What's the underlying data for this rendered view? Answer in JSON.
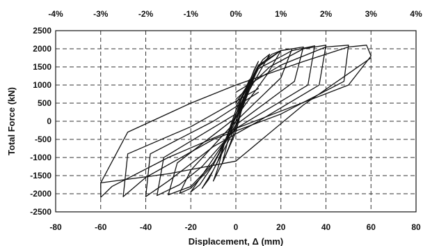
{
  "chart_data": {
    "type": "line",
    "xlabel": "Displacement, Δ (mm)",
    "ylabel": "Total Force (kN)",
    "top_axis_ticks": [
      "-4%",
      "-3%",
      "-2%",
      "-1%",
      "0%",
      "1%",
      "2%",
      "3%",
      "4%"
    ],
    "xlim": [
      -80,
      80
    ],
    "ylim": [
      -2500,
      2500
    ],
    "x_ticks": [
      -80,
      -60,
      -40,
      -20,
      0,
      20,
      40,
      60,
      80
    ],
    "y_ticks": [
      -2500,
      -2000,
      -1500,
      -1000,
      -500,
      0,
      500,
      1000,
      1500,
      2000,
      2500
    ],
    "grid": true,
    "series": [
      {
        "values": [
          [
            0,
            0
          ],
          [
            3,
            450
          ],
          [
            5,
            900
          ],
          [
            6,
            1150
          ],
          [
            3,
            700
          ],
          [
            0,
            180
          ],
          [
            -3,
            -400
          ],
          [
            -5,
            -900
          ],
          [
            -6,
            -1150
          ],
          [
            -3,
            -700
          ],
          [
            0,
            -180
          ],
          [
            3,
            450
          ]
        ]
      },
      {
        "values": [
          [
            0,
            0
          ],
          [
            5,
            900
          ],
          [
            8,
            1400
          ],
          [
            10,
            1650
          ],
          [
            6,
            1100
          ],
          [
            0,
            300
          ],
          [
            -5,
            -600
          ],
          [
            -8,
            -1300
          ],
          [
            -10,
            -1650
          ],
          [
            -6,
            -1150
          ],
          [
            0,
            -300
          ],
          [
            5,
            900
          ]
        ]
      },
      {
        "values": [
          [
            0,
            100
          ],
          [
            8,
            1300
          ],
          [
            12,
            1700
          ],
          [
            15,
            1850
          ],
          [
            10,
            1300
          ],
          [
            0,
            200
          ],
          [
            -8,
            -1100
          ],
          [
            -12,
            -1600
          ],
          [
            -15,
            -1850
          ],
          [
            -10,
            -1350
          ],
          [
            0,
            -150
          ],
          [
            8,
            1300
          ]
        ]
      },
      {
        "values": [
          [
            0,
            200
          ],
          [
            10,
            1500
          ],
          [
            16,
            1850
          ],
          [
            20,
            1950
          ],
          [
            14,
            1300
          ],
          [
            0,
            100
          ],
          [
            -10,
            -1200
          ],
          [
            -16,
            -1750
          ],
          [
            -20,
            -1950
          ],
          [
            -14,
            -1400
          ],
          [
            0,
            -100
          ],
          [
            10,
            1500
          ]
        ]
      },
      {
        "values": [
          [
            0,
            300
          ],
          [
            10,
            1550
          ],
          [
            20,
            1950
          ],
          [
            25,
            2000
          ],
          [
            20,
            1200
          ],
          [
            0,
            0
          ],
          [
            -10,
            -1200
          ],
          [
            -20,
            -1850
          ],
          [
            -25,
            -1990
          ],
          [
            -20,
            -1350
          ],
          [
            0,
            0
          ],
          [
            10,
            1550
          ]
        ]
      },
      {
        "values": [
          [
            0,
            400
          ],
          [
            10,
            1500
          ],
          [
            20,
            1950
          ],
          [
            30,
            2050
          ],
          [
            26,
            1100
          ],
          [
            0,
            -100
          ],
          [
            -10,
            -1150
          ],
          [
            -20,
            -1800
          ],
          [
            -30,
            -2030
          ],
          [
            -26,
            -1150
          ],
          [
            0,
            100
          ],
          [
            10,
            1500
          ]
        ]
      },
      {
        "values": [
          [
            0,
            500
          ],
          [
            10,
            1450
          ],
          [
            25,
            1950
          ],
          [
            35,
            2080
          ],
          [
            32,
            1000
          ],
          [
            0,
            -200
          ],
          [
            -15,
            -1250
          ],
          [
            -25,
            -1750
          ],
          [
            -35,
            -2050
          ],
          [
            -32,
            -1000
          ],
          [
            0,
            200
          ],
          [
            10,
            1450
          ]
        ]
      },
      {
        "values": [
          [
            0,
            600
          ],
          [
            15,
            1500
          ],
          [
            30,
            2000
          ],
          [
            40,
            2100
          ],
          [
            37,
            1000
          ],
          [
            10,
            0
          ],
          [
            -10,
            -700
          ],
          [
            -30,
            -1650
          ],
          [
            -40,
            -2080
          ],
          [
            -38,
            -900
          ],
          [
            -10,
            0
          ],
          [
            10,
            800
          ]
        ]
      },
      {
        "values": [
          [
            0,
            800
          ],
          [
            20,
            1550
          ],
          [
            40,
            2050
          ],
          [
            50,
            2100
          ],
          [
            48,
            1100
          ],
          [
            20,
            200
          ],
          [
            -10,
            -500
          ],
          [
            -40,
            -1550
          ],
          [
            -50,
            -2080
          ],
          [
            -48,
            -900
          ],
          [
            -20,
            -150
          ],
          [
            10,
            900
          ]
        ]
      },
      {
        "values": [
          [
            0,
            1000
          ],
          [
            30,
            1650
          ],
          [
            50,
            2050
          ],
          [
            58,
            2100
          ],
          [
            60,
            1800
          ],
          [
            50,
            1000
          ],
          [
            0,
            -200
          ],
          [
            -30,
            -1000
          ],
          [
            -55,
            -1800
          ],
          [
            -60,
            -2100
          ],
          [
            -60,
            -1700
          ],
          [
            -48,
            -300
          ],
          [
            -20,
            500
          ],
          [
            0,
            1000
          ]
        ]
      },
      {
        "values": [
          [
            -60,
            -1700
          ],
          [
            -30,
            -1450
          ],
          [
            0,
            -1100
          ],
          [
            30,
            450
          ],
          [
            60,
            1750
          ]
        ]
      }
    ]
  }
}
